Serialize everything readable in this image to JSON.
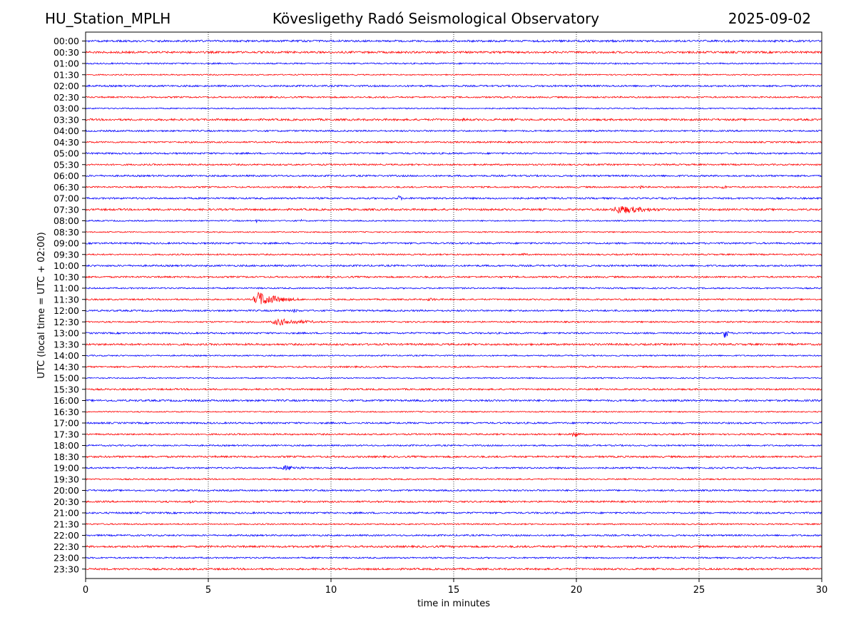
{
  "header": {
    "station": "HU_Station_MPLH",
    "title": "Kövesligethy Radó Seismological Observatory",
    "date": "2025-09-02"
  },
  "chart_data": {
    "type": "line",
    "title": "Kövesligethy Radó Seismological Observatory",
    "xlabel": "time in minutes",
    "ylabel": "UTC (local time = UTC + 02:00)",
    "xlim": [
      0,
      30
    ],
    "xticks": [
      0,
      5,
      10,
      15,
      20,
      25,
      30
    ],
    "grid": "vertical dotted lines at x = 5, 10, 15, 20, 25",
    "colors": {
      "even_rows": "#0000ff",
      "odd_rows": "#ff0000"
    },
    "rows": [
      "00:00",
      "00:30",
      "01:00",
      "01:30",
      "02:00",
      "02:30",
      "03:00",
      "03:30",
      "04:00",
      "04:30",
      "05:00",
      "05:30",
      "06:00",
      "06:30",
      "07:00",
      "07:30",
      "08:00",
      "08:30",
      "09:00",
      "09:30",
      "10:00",
      "10:30",
      "11:00",
      "11:30",
      "12:00",
      "12:30",
      "13:00",
      "13:30",
      "14:00",
      "14:30",
      "15:00",
      "15:30",
      "16:00",
      "16:30",
      "17:00",
      "17:30",
      "18:00",
      "18:30",
      "19:00",
      "19:30",
      "20:00",
      "20:30",
      "21:00",
      "21:30",
      "22:00",
      "22:30",
      "23:00",
      "23:30"
    ],
    "events": [
      {
        "row": "00:00",
        "start": 21.0,
        "dur": 0.8,
        "amp": 1.3
      },
      {
        "row": "02:30",
        "start": 12.0,
        "dur": 1.5,
        "amp": 1.3
      },
      {
        "row": "03:30",
        "start": 15.2,
        "dur": 1.5,
        "amp": 2.5
      },
      {
        "row": "06:30",
        "start": 22.5,
        "dur": 0.5,
        "amp": 4.0
      },
      {
        "row": "06:30",
        "start": 25.9,
        "dur": 0.5,
        "amp": 4.0
      },
      {
        "row": "07:00",
        "start": 12.7,
        "dur": 0.5,
        "amp": 4.5
      },
      {
        "row": "07:30",
        "start": 21.3,
        "dur": 3.8,
        "amp": 6.5
      },
      {
        "row": "08:00",
        "start": 6.9,
        "dur": 0.6,
        "amp": 2.5
      },
      {
        "row": "08:00",
        "start": 8.7,
        "dur": 0.4,
        "amp": 2.5
      },
      {
        "row": "09:30",
        "start": 17.7,
        "dur": 0.8,
        "amp": 2.5
      },
      {
        "row": "11:30",
        "start": 6.75,
        "dur": 2.5,
        "amp": 11.0
      },
      {
        "row": "11:30",
        "start": 13.8,
        "dur": 1.6,
        "amp": 2.5
      },
      {
        "row": "12:00",
        "start": 8.4,
        "dur": 0.8,
        "amp": 3.0
      },
      {
        "row": "12:30",
        "start": 7.4,
        "dur": 3.8,
        "amp": 5.0
      },
      {
        "row": "13:00",
        "start": 26.0,
        "dur": 0.3,
        "amp": 13.0
      },
      {
        "row": "17:30",
        "start": 19.8,
        "dur": 0.6,
        "amp": 7.0
      },
      {
        "row": "17:30",
        "start": 22.6,
        "dur": 0.3,
        "amp": 2.5
      },
      {
        "row": "19:00",
        "start": 7.9,
        "dur": 2.2,
        "amp": 4.0
      },
      {
        "row": "20:30",
        "start": 4.2,
        "dur": 0.5,
        "amp": 2.5
      }
    ]
  }
}
